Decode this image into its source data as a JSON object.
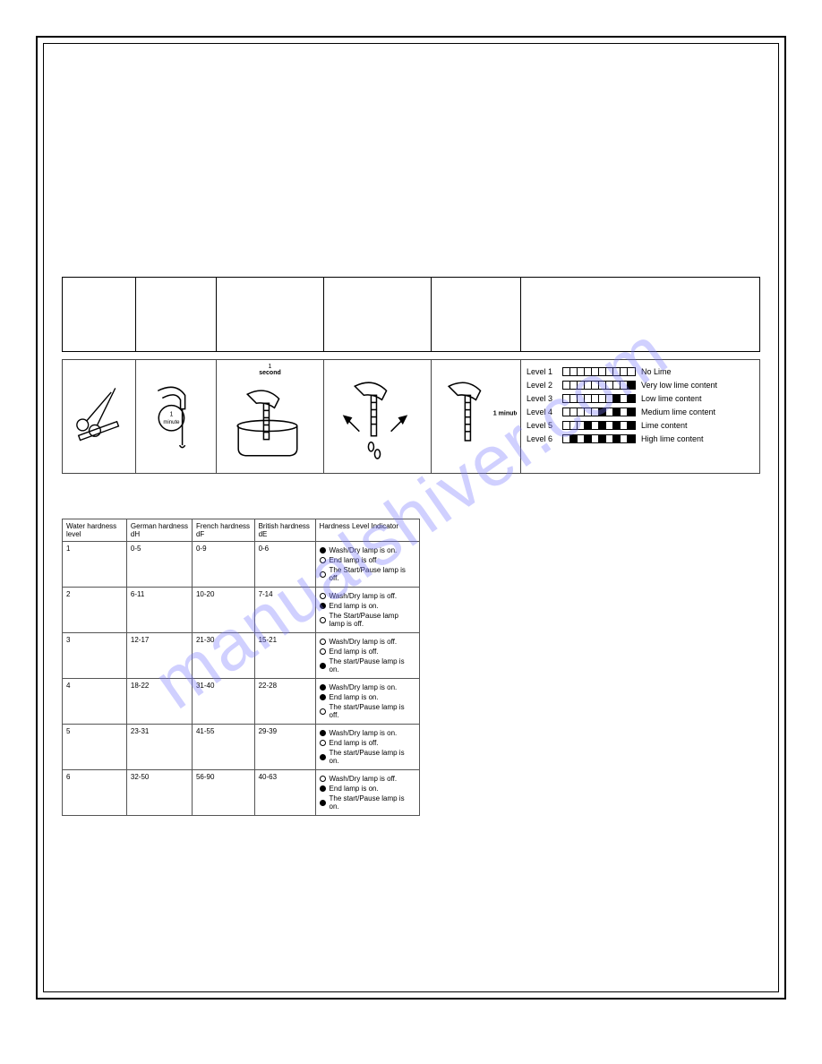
{
  "watermark": "manualshiver.com",
  "strip_labels": {
    "second_top": "1",
    "second_bottom": "second",
    "minute1": "1 minute",
    "minute2": "1 minute"
  },
  "levels": [
    {
      "name": "Level 1",
      "pattern": [
        0,
        0,
        0,
        0,
        0,
        0,
        0,
        0,
        0,
        0
      ],
      "desc": "No Lime"
    },
    {
      "name": "Level 2",
      "pattern": [
        0,
        0,
        0,
        0,
        0,
        0,
        0,
        0,
        0,
        1
      ],
      "desc": "Very low lime content"
    },
    {
      "name": "Level 3",
      "pattern": [
        0,
        0,
        0,
        0,
        0,
        0,
        0,
        1,
        0,
        1
      ],
      "desc": "Low lime content"
    },
    {
      "name": "Level 4",
      "pattern": [
        0,
        0,
        0,
        0,
        0,
        1,
        0,
        1,
        0,
        1
      ],
      "desc": "Medium lime content"
    },
    {
      "name": "Level 5",
      "pattern": [
        0,
        0,
        0,
        1,
        0,
        1,
        0,
        1,
        0,
        1
      ],
      "desc": "Lime content"
    },
    {
      "name": "Level 6",
      "pattern": [
        0,
        1,
        0,
        1,
        0,
        1,
        0,
        1,
        0,
        1
      ],
      "desc": "High lime content"
    }
  ],
  "table": {
    "headers": {
      "water": "Water hardness level",
      "german": "German hardness dH",
      "french": "French hardness dF",
      "british": "British hardness dE",
      "indicator": "Hardness Level Indicator"
    },
    "rows": [
      {
        "level": "1",
        "dh": "0-5",
        "df": "0-9",
        "de": "0-6",
        "ind": [
          {
            "on": true,
            "text": "Wash/Dry lamp is on."
          },
          {
            "on": false,
            "text": "End lamp is off"
          },
          {
            "on": false,
            "text": "The Start/Pause lamp is off."
          }
        ]
      },
      {
        "level": "2",
        "dh": "6-11",
        "df": "10-20",
        "de": "7-14",
        "ind": [
          {
            "on": false,
            "text": "Wash/Dry lamp is off."
          },
          {
            "on": true,
            "text": "End lamp is on."
          },
          {
            "on": false,
            "text": "The Start/Pause lamp lamp is off."
          }
        ]
      },
      {
        "level": "3",
        "dh": "12-17",
        "df": "21-30",
        "de": "15-21",
        "ind": [
          {
            "on": false,
            "text": "Wash/Dry lamp is off."
          },
          {
            "on": false,
            "text": "End lamp is off."
          },
          {
            "on": true,
            "text": "The start/Pause lamp is on."
          }
        ]
      },
      {
        "level": "4",
        "dh": "18-22",
        "df": "31-40",
        "de": "22-28",
        "ind": [
          {
            "on": true,
            "text": "Wash/Dry lamp is on."
          },
          {
            "on": true,
            "text": "End lamp is on."
          },
          {
            "on": false,
            "text": "The start/Pause lamp is off."
          }
        ]
      },
      {
        "level": "5",
        "dh": "23-31",
        "df": "41-55",
        "de": "29-39",
        "ind": [
          {
            "on": true,
            "text": "Wash/Dry lamp is on."
          },
          {
            "on": false,
            "text": "End lamp is off."
          },
          {
            "on": true,
            "text": "The start/Pause lamp is on."
          }
        ]
      },
      {
        "level": "6",
        "dh": "32-50",
        "df": "56-90",
        "de": "40-63",
        "ind": [
          {
            "on": false,
            "text": "Wash/Dry lamp is off."
          },
          {
            "on": true,
            "text": "End lamp is on."
          },
          {
            "on": true,
            "text": "The start/Pause lamp is on."
          }
        ]
      }
    ]
  }
}
